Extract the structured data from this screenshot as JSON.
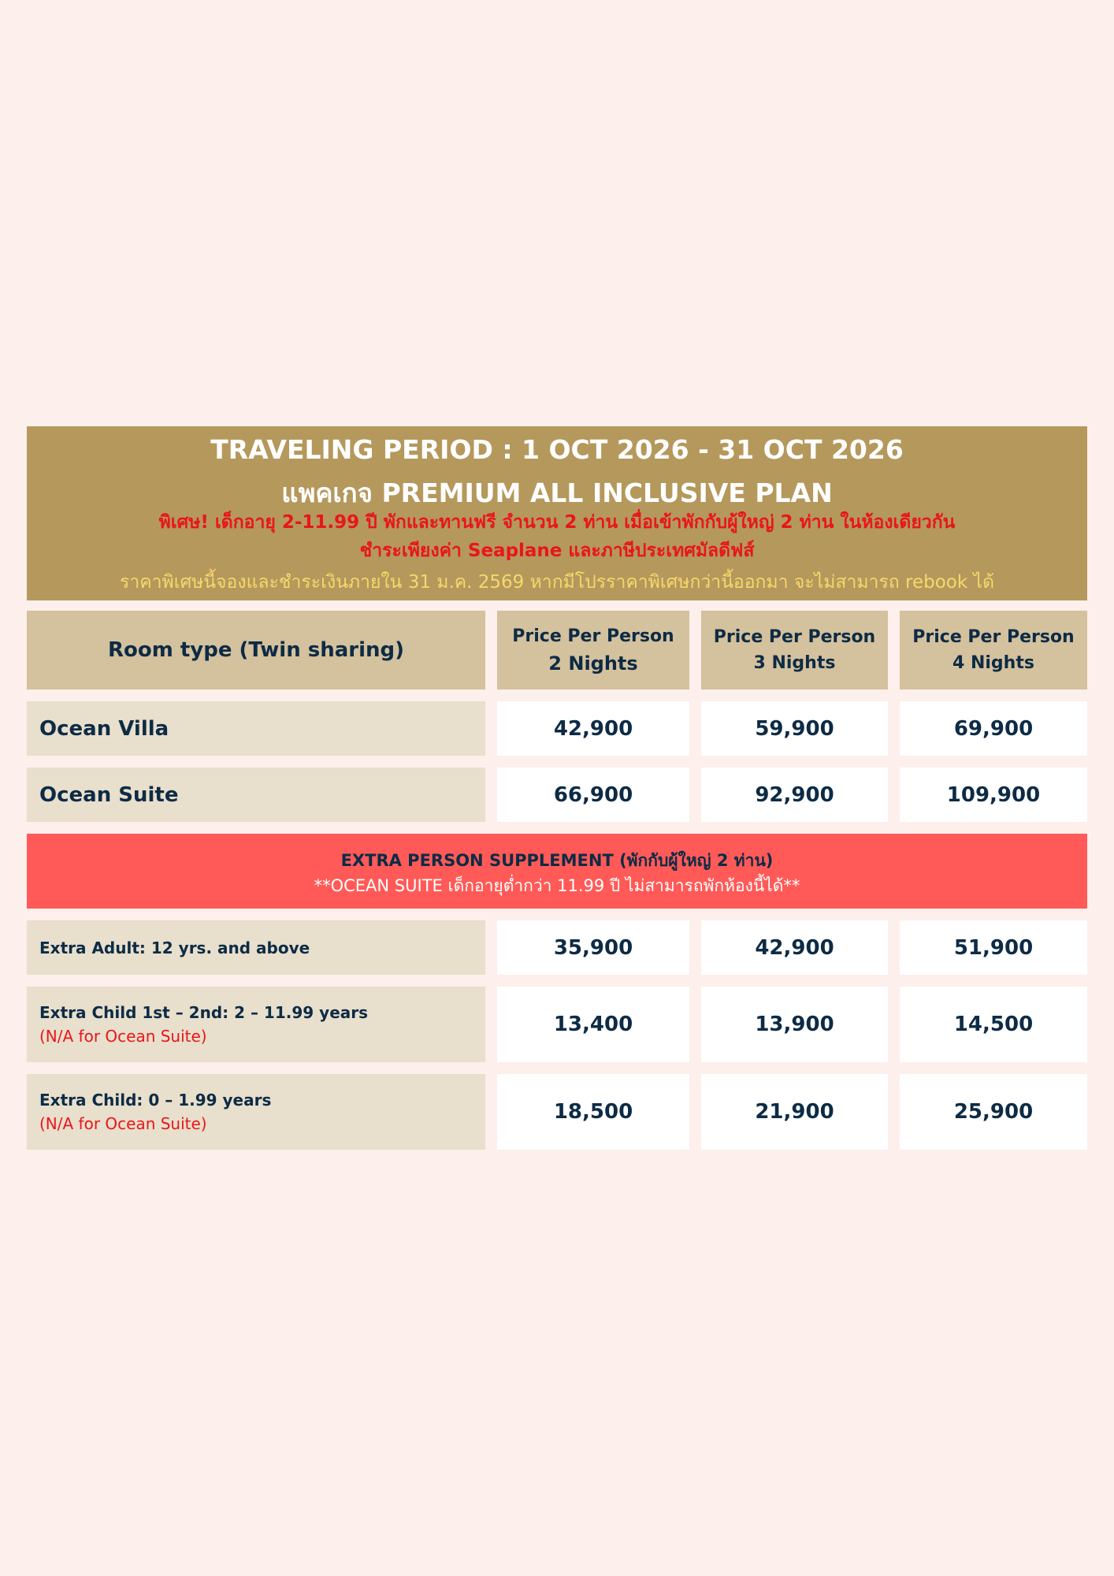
{
  "banner": {
    "period": "TRAVELING PERIOD :  1 OCT 2026 - 31 OCT 2026",
    "plan": "แพคเกจ PREMIUM ALL INCLUSIVE PLAN",
    "special_line1": "พิเศษ! เด็กอายุ 2-11.99 ปี พักและทานฟรี จำนวน 2 ท่าน เมื่อเข้าพักกับผู้ใหญ่ 2 ท่าน ในห้องเดียวกัน",
    "special_line2": "ชำระเพียงค่า Seaplane และภาษีประเทศมัลดีฟส์",
    "booking_note": "ราคาพิเศษนี้จองและชำระเงินภายใน 31 ม.ค. 2569 หากมีโปรราคาพิเศษกว่านี้ออกมา จะไม่สามารถ rebook ได้"
  },
  "table": {
    "headers": [
      {
        "line1": "Room type (Twin sharing)"
      },
      {
        "line1": "Price Per Person",
        "line2": "2 Nights"
      },
      {
        "line1": "Price Per Person",
        "line2": "3 Nights"
      },
      {
        "line1": "Price Per Person",
        "line2": "4 Nights"
      }
    ],
    "rooms": [
      {
        "name": "Ocean Villa",
        "prices": [
          "42,900",
          "59,900",
          "69,900"
        ]
      },
      {
        "name": "Ocean Suite",
        "prices": [
          "66,900",
          "92,900",
          "109,900"
        ]
      }
    ]
  },
  "supplement": {
    "title": "EXTRA PERSON SUPPLEMENT (พักกับผู้ใหญ่ 2 ท่าน)",
    "note": "**OCEAN SUITE เด็กอายุต่ำกว่า 11.99 ปี ไม่สามารถพักห้องนี้ได้**",
    "rows": [
      {
        "label": "Extra Adult: 12 yrs. and above",
        "prices": [
          "35,900",
          "42,900",
          "51,900"
        ]
      },
      {
        "label": "Extra Child 1st – 2nd: 2 – 11.99 years",
        "note": "(N/A for Ocean Suite)",
        "prices": [
          "13,400",
          "13,900",
          "14,500"
        ]
      },
      {
        "label": "Extra Child: 0 – 1.99 years",
        "note": "(N/A for Ocean Suite)",
        "prices": [
          "18,500",
          "21,900",
          "25,900"
        ]
      }
    ]
  },
  "colors": {
    "background": "#fdefeb",
    "banner": "#b5985c",
    "header_cell": "#d4c19d",
    "label_cell": "#e8dfcc",
    "supplement_banner": "#ff5a57",
    "text": "#0d2b45"
  }
}
